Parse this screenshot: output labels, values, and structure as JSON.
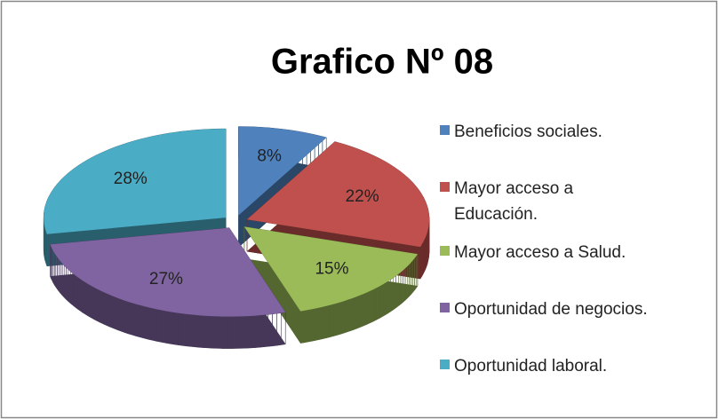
{
  "chart_data": {
    "type": "pie",
    "title": "Grafico Nº 08",
    "categories": [
      "Beneficios sociales.",
      "Mayor acceso a Educación.",
      "Mayor acceso a Salud.",
      "Oportunidad de negocios.",
      "Oportunidad laboral."
    ],
    "values": [
      8,
      22,
      15,
      27,
      28
    ],
    "value_labels": [
      "8%",
      "22%",
      "15%",
      "27%",
      "28%"
    ],
    "colors": [
      "#4f81bd",
      "#c0504d",
      "#9bbb59",
      "#8064a2",
      "#4bacc6"
    ],
    "legend": "right"
  }
}
